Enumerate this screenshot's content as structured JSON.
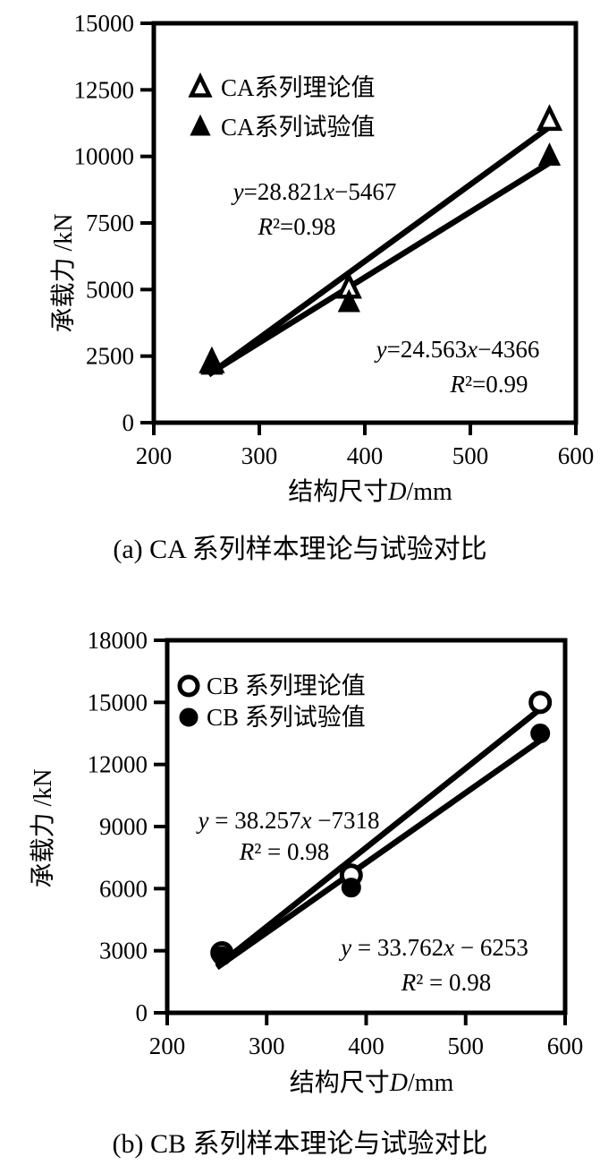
{
  "colors": {
    "foreground": "#000000",
    "background": "#ffffff"
  },
  "chart_data": [
    {
      "type": "scatter",
      "title": "(a) CA 系列样本理论与试验对比",
      "xlabel": "结构尺寸D/mm",
      "ylabel": "承载力 /kN",
      "xlim": [
        200,
        600
      ],
      "ylim": [
        0,
        15000
      ],
      "x_ticks": [
        200,
        300,
        400,
        500,
        600
      ],
      "y_ticks": [
        0,
        2500,
        5000,
        7500,
        10000,
        12500,
        15000
      ],
      "grid": false,
      "legend_position": "top-left-inside",
      "series": [
        {
          "name": "CA系列理论值",
          "marker": "triangle-open",
          "points": [
            [
              255,
              2250
            ],
            [
              385,
              5050
            ],
            [
              575,
              11350
            ]
          ],
          "fit": {
            "slope": 28.821,
            "intercept": -5467,
            "r2": 0.98,
            "equation": "y=28.821x−5467",
            "r2_label": "R²=0.98"
          }
        },
        {
          "name": "CA系列试验值",
          "marker": "triangle-filled",
          "points": [
            [
              255,
              2150
            ],
            [
              385,
              4500
            ],
            [
              575,
              10000
            ]
          ],
          "fit": {
            "slope": 24.563,
            "intercept": -4366,
            "r2": 0.99,
            "equation": "y=24.563x−4366",
            "r2_label": "R²=0.99"
          }
        }
      ]
    },
    {
      "type": "scatter",
      "title": "(b) CB 系列样本理论与试验对比",
      "xlabel": "结构尺寸D/mm",
      "ylabel": "承载力 /kN",
      "xlim": [
        200,
        600
      ],
      "ylim": [
        0,
        18000
      ],
      "x_ticks": [
        200,
        300,
        400,
        500,
        600
      ],
      "y_ticks": [
        0,
        3000,
        6000,
        9000,
        12000,
        15000,
        18000
      ],
      "grid": false,
      "legend_position": "top-left-inside",
      "series": [
        {
          "name": "CB 系列理论值",
          "marker": "circle-open",
          "points": [
            [
              255,
              2900
            ],
            [
              385,
              6650
            ],
            [
              575,
              15000
            ]
          ],
          "fit": {
            "slope": 38.257,
            "intercept": -7318,
            "r2": 0.98,
            "equation": "y = 38.257x −7318",
            "r2_label": "R² = 0.98"
          }
        },
        {
          "name": "CB 系列试验值",
          "marker": "circle-filled",
          "points": [
            [
              255,
              2750
            ],
            [
              385,
              6050
            ],
            [
              575,
              13500
            ]
          ],
          "fit": {
            "slope": 33.762,
            "intercept": -6253,
            "r2": 0.98,
            "equation": "y = 33.762x − 6253",
            "r2_label": "R² = 0.98"
          }
        }
      ]
    }
  ]
}
